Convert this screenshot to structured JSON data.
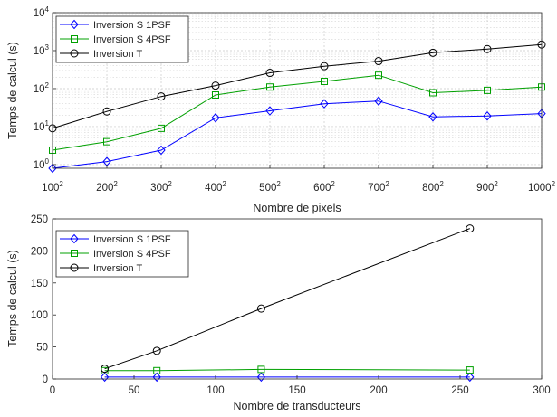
{
  "chart_data": [
    {
      "type": "line",
      "title": "",
      "xlabel": "Nombre de pixels",
      "ylabel": "Temps de calcul (s)",
      "yscale": "log",
      "ylim": [
        0.8,
        10000
      ],
      "xlim": [
        100,
        1000
      ],
      "x": [
        100,
        200,
        300,
        400,
        500,
        600,
        700,
        800,
        900,
        1000
      ],
      "x_tick_labels": [
        {
          "base": "100",
          "exp": "2"
        },
        {
          "base": "200",
          "exp": "2"
        },
        {
          "base": "300",
          "exp": "2"
        },
        {
          "base": "400",
          "exp": "2"
        },
        {
          "base": "500",
          "exp": "2"
        },
        {
          "base": "600",
          "exp": "2"
        },
        {
          "base": "700",
          "exp": "2"
        },
        {
          "base": "800",
          "exp": "2"
        },
        {
          "base": "900",
          "exp": "2"
        },
        {
          "base": "1000",
          "exp": "2"
        }
      ],
      "y_tick_labels": [
        {
          "v": 1,
          "base": "10",
          "exp": "0"
        },
        {
          "v": 10,
          "base": "10",
          "exp": "1"
        },
        {
          "v": 100,
          "base": "10",
          "exp": "2"
        },
        {
          "v": 1000,
          "base": "10",
          "exp": "3"
        },
        {
          "v": 10000,
          "base": "10",
          "exp": "4"
        }
      ],
      "grid": true,
      "minor_grid": true,
      "legend_position": "top-left",
      "series": [
        {
          "name": "Inversion S 1PSF",
          "color": "#0000ff",
          "marker": "diamond",
          "values": [
            0.8,
            1.2,
            2.4,
            17,
            26,
            40,
            47,
            18,
            19,
            22
          ]
        },
        {
          "name": "Inversion S 4PSF",
          "color": "#00a000",
          "marker": "square",
          "values": [
            2.4,
            4,
            9,
            68,
            110,
            155,
            225,
            78,
            90,
            110
          ]
        },
        {
          "name": "Inversion T",
          "color": "#000000",
          "marker": "circle",
          "values": [
            9,
            25,
            62,
            120,
            260,
            390,
            530,
            880,
            1100,
            1450
          ]
        }
      ]
    },
    {
      "type": "line",
      "title": "",
      "xlabel": "Nombre de transducteurs",
      "ylabel": "Temps de calcul (s)",
      "xlim": [
        0,
        300
      ],
      "ylim": [
        0,
        250
      ],
      "x_ticks": [
        0,
        50,
        100,
        150,
        200,
        250,
        300
      ],
      "y_ticks": [
        0,
        50,
        100,
        150,
        200,
        250
      ],
      "grid": false,
      "legend_position": "top-left",
      "series": [
        {
          "name": "Inversion S 1PSF",
          "color": "#0000ff",
          "marker": "diamond",
          "x": [
            32,
            64,
            128,
            256
          ],
          "values": [
            3,
            3,
            3,
            3
          ]
        },
        {
          "name": "Inversion S 4PSF",
          "color": "#00a000",
          "marker": "square",
          "x": [
            32,
            64,
            128,
            256
          ],
          "values": [
            13,
            13,
            15,
            14
          ]
        },
        {
          "name": "Inversion T",
          "color": "#000000",
          "marker": "circle",
          "x": [
            32,
            64,
            128,
            256
          ],
          "values": [
            16,
            44,
            110,
            235
          ]
        }
      ]
    }
  ]
}
